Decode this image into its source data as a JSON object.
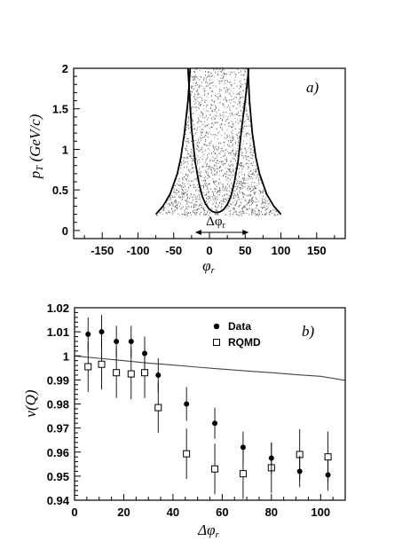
{
  "chart_data": [
    {
      "type": "scatter",
      "panel_label": "a)",
      "xlabel": "φ_r",
      "ylabel": "p_T (GeV/c)",
      "xlim": [
        -190,
        190
      ],
      "ylim": [
        -0.1,
        2.0
      ],
      "x_ticks": [
        "-150",
        "-100",
        "-50",
        "0",
        "50",
        "100",
        "150"
      ],
      "y_ticks": [
        "0",
        "0.5",
        "1",
        "1.5",
        "2"
      ],
      "annotation": "Δφ_r",
      "annotation_range": [
        -20,
        55
      ],
      "envelope_outer": {
        "left_x": [
          -75,
          -65,
          -55,
          -45,
          -40,
          -35,
          -30,
          -27
        ],
        "right_x": [
          100,
          90,
          80,
          70,
          65,
          60,
          56,
          54
        ],
        "y": [
          0.2,
          0.3,
          0.45,
          0.7,
          0.9,
          1.2,
          1.6,
          2.0
        ]
      },
      "envelope_inner": {
        "x": [
          -30,
          -25,
          -20,
          -15,
          -10,
          -5,
          0,
          5,
          10,
          15,
          20,
          25,
          30,
          35,
          40,
          45,
          50,
          55
        ],
        "y": [
          2.0,
          1.25,
          0.85,
          0.6,
          0.42,
          0.32,
          0.26,
          0.23,
          0.22,
          0.23,
          0.26,
          0.32,
          0.42,
          0.6,
          0.85,
          1.25,
          1.6,
          2.0
        ]
      },
      "grid": false
    },
    {
      "type": "scatter",
      "panel_label": "b)",
      "xlabel": "Δφ_r",
      "ylabel": "v(Q)",
      "xlim": [
        0,
        110
      ],
      "ylim": [
        0.94,
        1.02
      ],
      "x_ticks": [
        "0",
        "20",
        "40",
        "60",
        "80",
        "100"
      ],
      "y_ticks": [
        "0.94",
        "0.95",
        "0.96",
        "0.97",
        "0.98",
        "0.99",
        "1",
        "1.01",
        "1.02"
      ],
      "legend": [
        "Data",
        "RQMD"
      ],
      "legend_position": "top-right",
      "series": [
        {
          "name": "Data",
          "marker": "filled-circle",
          "x": [
            5.5,
            11,
            17,
            23,
            28.5,
            34,
            45.5,
            57,
            68.5,
            80,
            91.5,
            103
          ],
          "y": [
            1.009,
            1.01,
            1.006,
            1.006,
            1.001,
            0.992,
            0.98,
            0.972,
            0.962,
            0.9575,
            0.952,
            0.9505
          ],
          "err": [
            0.007,
            0.007,
            0.0065,
            0.0065,
            0.007,
            0.007,
            0.007,
            0.0065,
            0.0065,
            0.0065,
            0.0065,
            0.0065
          ]
        },
        {
          "name": "RQMD",
          "marker": "open-square",
          "x": [
            5.5,
            11,
            17,
            23,
            28.5,
            34,
            45.5,
            57,
            68.5,
            80,
            91.5,
            103
          ],
          "y": [
            0.9955,
            0.9965,
            0.993,
            0.9925,
            0.993,
            0.9785,
            0.9593,
            0.953,
            0.951,
            0.9535,
            0.959,
            0.958
          ],
          "err": [
            0.0105,
            0.0105,
            0.0105,
            0.0105,
            0.0105,
            0.0105,
            0.0105,
            0.0105,
            0.0105,
            0.0105,
            0.0105,
            0.0105
          ]
        },
        {
          "marker": "line",
          "x": [
            0,
            10,
            20,
            30,
            40,
            50,
            60,
            70,
            80,
            90,
            100,
            110
          ],
          "y": [
            1.0,
            0.999,
            0.998,
            0.997,
            0.9962,
            0.9953,
            0.9945,
            0.9937,
            0.993,
            0.9922,
            0.9915,
            0.9898
          ]
        }
      ],
      "grid": false
    }
  ]
}
